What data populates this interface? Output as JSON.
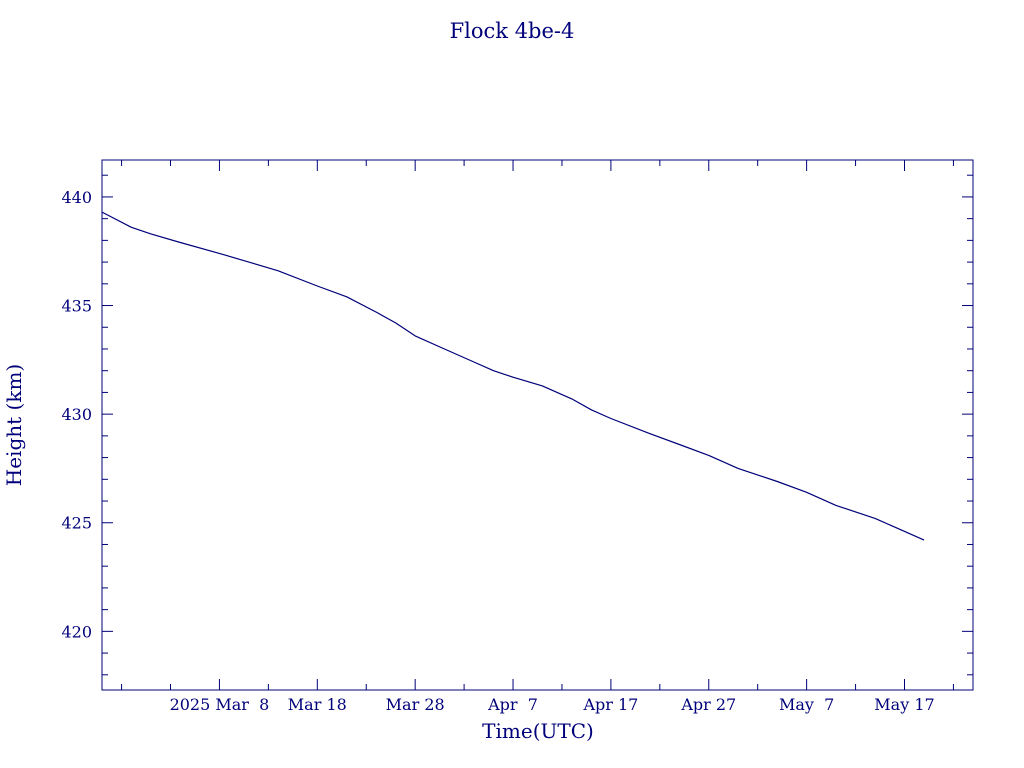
{
  "chart_data": {
    "type": "line",
    "title": "Flock 4be-4",
    "xlabel": "Time(UTC)",
    "ylabel": "Height (km)",
    "color": "#00007a",
    "x_axis": {
      "type": "date",
      "range": [
        "2025-02-24",
        "2025-05-24"
      ],
      "major_ticks": [
        {
          "date": "2025-03-08",
          "label": "2025 Mar  8"
        },
        {
          "date": "2025-03-18",
          "label": "Mar 18"
        },
        {
          "date": "2025-03-28",
          "label": "Mar 28"
        },
        {
          "date": "2025-04-07",
          "label": "Apr  7"
        },
        {
          "date": "2025-04-17",
          "label": "Apr 17"
        },
        {
          "date": "2025-04-27",
          "label": "Apr 27"
        },
        {
          "date": "2025-05-07",
          "label": "May  7"
        },
        {
          "date": "2025-05-17",
          "label": "May 17"
        }
      ],
      "minor_tick_days": 5
    },
    "y_axis": {
      "range": [
        417.3,
        441.7
      ],
      "major_ticks": [
        420,
        425,
        430,
        435,
        440
      ],
      "minor_step": 1
    },
    "series": [
      {
        "points": [
          {
            "x": "2025-02-24",
            "y": 439.3
          },
          {
            "x": "2025-02-27",
            "y": 438.6
          },
          {
            "x": "2025-03-01",
            "y": 438.3
          },
          {
            "x": "2025-03-04",
            "y": 437.9
          },
          {
            "x": "2025-03-08",
            "y": 437.4
          },
          {
            "x": "2025-03-11",
            "y": 437.0
          },
          {
            "x": "2025-03-14",
            "y": 436.6
          },
          {
            "x": "2025-03-18",
            "y": 435.9
          },
          {
            "x": "2025-03-21",
            "y": 435.4
          },
          {
            "x": "2025-03-24",
            "y": 434.7
          },
          {
            "x": "2025-03-26",
            "y": 434.2
          },
          {
            "x": "2025-03-28",
            "y": 433.6
          },
          {
            "x": "2025-03-31",
            "y": 433.0
          },
          {
            "x": "2025-04-03",
            "y": 432.4
          },
          {
            "x": "2025-04-05",
            "y": 432.0
          },
          {
            "x": "2025-04-07",
            "y": 431.7
          },
          {
            "x": "2025-04-10",
            "y": 431.3
          },
          {
            "x": "2025-04-13",
            "y": 430.7
          },
          {
            "x": "2025-04-15",
            "y": 430.2
          },
          {
            "x": "2025-04-17",
            "y": 429.8
          },
          {
            "x": "2025-04-21",
            "y": 429.1
          },
          {
            "x": "2025-04-24",
            "y": 428.6
          },
          {
            "x": "2025-04-27",
            "y": 428.1
          },
          {
            "x": "2025-04-30",
            "y": 427.5
          },
          {
            "x": "2025-05-04",
            "y": 426.9
          },
          {
            "x": "2025-05-07",
            "y": 426.4
          },
          {
            "x": "2025-05-10",
            "y": 425.8
          },
          {
            "x": "2025-05-14",
            "y": 425.2
          },
          {
            "x": "2025-05-16",
            "y": 424.8
          },
          {
            "x": "2025-05-19",
            "y": 424.2
          }
        ]
      }
    ]
  }
}
